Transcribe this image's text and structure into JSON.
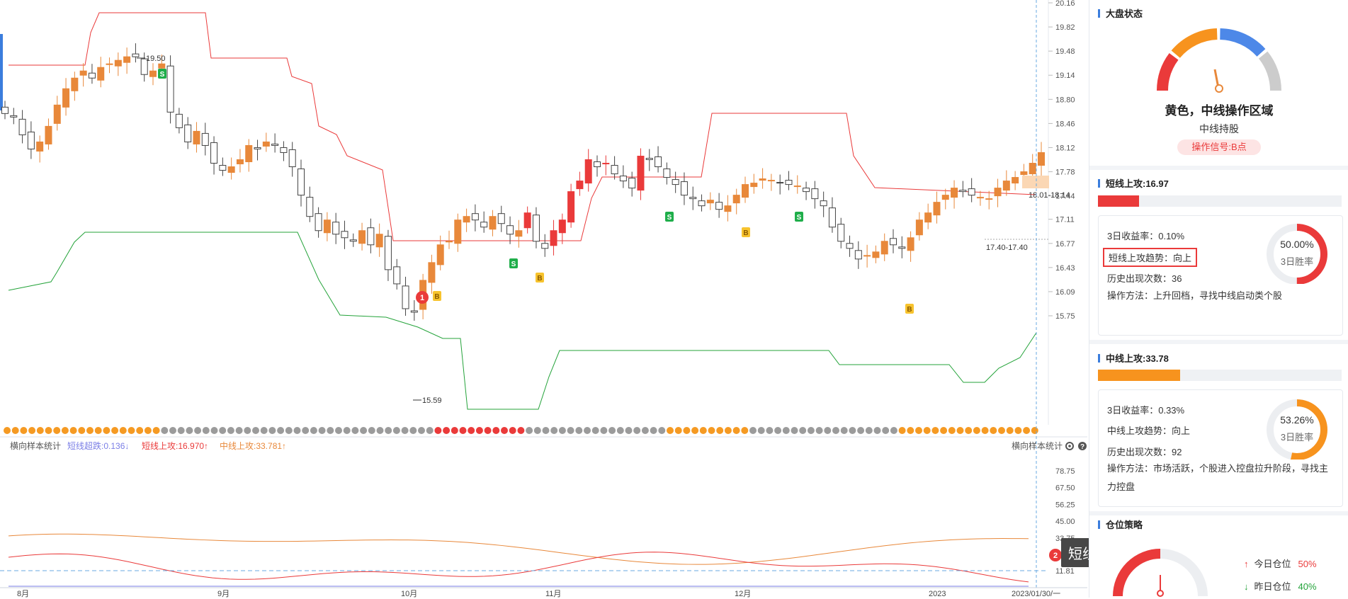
{
  "colors": {
    "up": "#e8883a",
    "down": "#ffffff",
    "red_candle": "#ea3a3a",
    "hollow": "#444444",
    "upper_band": "#ea3a3a",
    "lower_band": "#24a33a",
    "dot_orange": "#f59a23",
    "dot_gray": "#9b9b9b",
    "dot_red": "#ea3a3a",
    "accent_blue": "#3b7ddd"
  },
  "chart_data": [
    {
      "type": "candlestick",
      "y_ticks": [
        "20.16",
        "19.82",
        "19.48",
        "19.14",
        "18.80",
        "18.46",
        "18.12",
        "17.78",
        "17.44",
        "17.11",
        "16.77",
        "16.43",
        "16.09",
        "15.75"
      ],
      "ylim": [
        15.59,
        20.16
      ],
      "x_ticks": [
        "8月",
        "9月",
        "10月",
        "11月",
        "12月",
        "2023",
        "2023/01/30/一"
      ],
      "annotations": {
        "high_label": "19.50",
        "low_label": "15.59",
        "zone_label": "18.01-18.14",
        "support_label": "17.40-17.40",
        "marker_1": "1",
        "buy_letter": "B",
        "sell_letter": "S"
      }
    },
    {
      "type": "line",
      "title": "横向样本统计",
      "y_ticks": [
        "78.75",
        "67.50",
        "56.25",
        "45.00",
        "33.75",
        "22.50",
        "11.81"
      ],
      "legend": [
        {
          "name": "短线超跌:0.136",
          "color": "#7a7ee6",
          "arrow": "↓"
        },
        {
          "name": "短线上攻:16.970",
          "color": "#ea3a3a",
          "arrow": "↑"
        },
        {
          "name": "中线上攻:33.781",
          "color": "#e8883a",
          "arrow": "↑"
        }
      ]
    }
  ],
  "sub_chart": {
    "right_title": "横向样本统计",
    "marker_2": "2",
    "tooltip": "短线上攻往上时"
  },
  "panel": {
    "market": {
      "title": "大盘状态",
      "status": "黄色，中线操作区域",
      "sub": "中线持股",
      "signal": "操作信号:B点"
    },
    "short": {
      "title": "短线上攻:16.97",
      "progress": 0.1697,
      "stats": [
        "3日收益率：0.10%",
        "短线上攻趋势：向上",
        "历史出现次数：36"
      ],
      "method": "操作方法：上升回档，寻找中线启动类个股",
      "ring_pct": "50.00%",
      "ring_value": 0.5,
      "ring_label": "3日胜率"
    },
    "medium": {
      "title": "中线上攻:33.78",
      "progress": 0.3378,
      "stats": [
        "3日收益率：0.33%",
        "中线上攻趋势：向上",
        "历史出现次数：92"
      ],
      "method": "操作方法：市场活跃，个股进入控盘拉升阶段，寻找主力控盘",
      "ring_pct": "53.26%",
      "ring_value": 0.5326,
      "ring_label": "3日胜率"
    },
    "position": {
      "title": "仓位策略",
      "today_label": "今日仓位",
      "today_value": "50%",
      "yesterday_label": "昨日仓位",
      "yesterday_value": "40%"
    }
  }
}
